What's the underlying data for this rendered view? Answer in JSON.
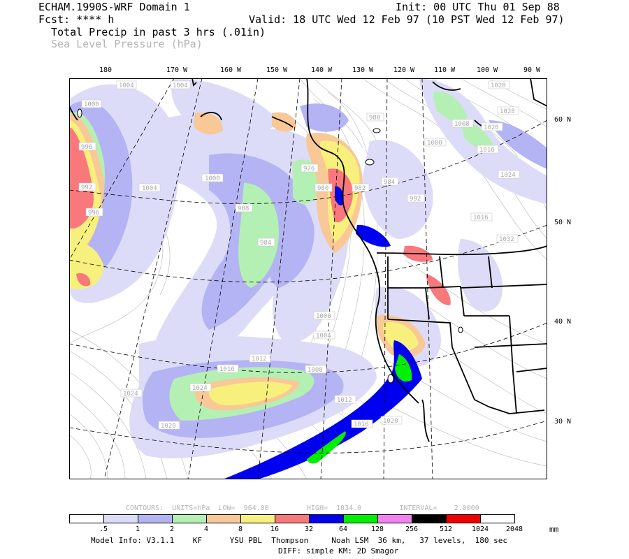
{
  "header": {
    "model": "ECHAM.1990S-WRF Domain 1",
    "forecast": "Fcst: **** h",
    "init": "Init: 00 UTC Thu 01 Sep 88",
    "valid": "Valid: 18 UTC Wed 12 Feb 97 (10 PST Wed 12 Feb 97)",
    "field1": "Total Precip in past 3 hrs (.01in)",
    "field2": "Sea Level Pressure (hPa)"
  },
  "longitude_labels": [
    "180",
    "170 W",
    "160 W",
    "150 W",
    "140 W",
    "130 W",
    "120 W",
    "110 W",
    "100 W",
    "90 W"
  ],
  "latitude_labels": [
    "60 N",
    "50 N",
    "40 N",
    "30 N"
  ],
  "slp_contour_labels": [
    "1004",
    "1000",
    "996",
    "992",
    "1004",
    "1004",
    "1000",
    "996",
    "988",
    "984",
    "976",
    "980",
    "982",
    "984",
    "988",
    "992",
    "1000",
    "1008",
    "1016",
    "1020",
    "1024",
    "1028",
    "1028",
    "1032",
    "1016",
    "1012",
    "1008",
    "1004",
    "1000",
    "1020",
    "1024",
    "1016",
    "1012",
    "1020",
    "1016",
    "1024"
  ],
  "contours_info": "CONTOURS:  UNITS=hPa  LOW=  964.00         HIGH=  1034.0         INTERVAL=    2.0000",
  "colorbar": {
    "colors": [
      "#ffffff",
      "#dcdcf8",
      "#b4b4f4",
      "#b4f0b4",
      "#f8c896",
      "#f8f07c",
      "#f8787c",
      "#0000f0",
      "#00f000",
      "#f082f0",
      "#000000",
      "#f00000",
      "#ffffff"
    ],
    "labels": [
      ".5",
      "1",
      "2",
      "4",
      "8",
      "16",
      "32",
      "64",
      "128",
      "256",
      "512",
      "1024",
      "2048"
    ],
    "unit": "mm"
  },
  "footer": {
    "line1": "Model Info: V3.1.1    KF      YSU PBL  Thompson     Noah LSM  36 km,   37 levels,  180 sec",
    "line2": "DIFF: simple KM: 2D Smagor"
  }
}
